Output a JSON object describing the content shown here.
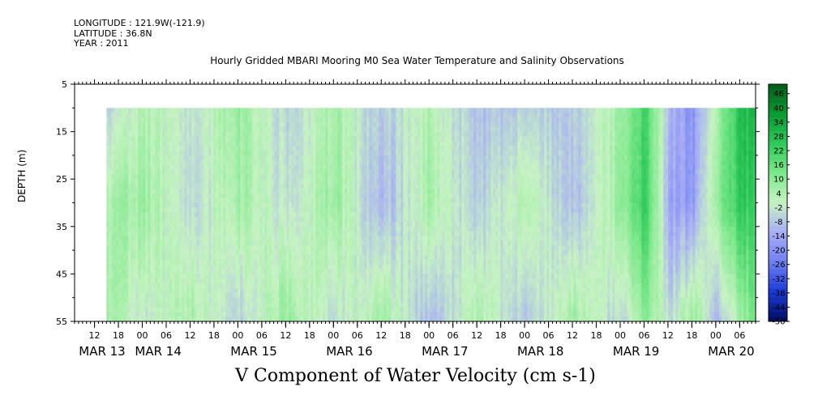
{
  "header": {
    "longitude": "LONGITUDE : 121.9W(-121.9)",
    "latitude": "LATITUDE : 36.8N",
    "year": "YEAR : 2011"
  },
  "chart_data": {
    "type": "heatmap",
    "title": "Hourly Gridded MBARI Mooring M0 Sea Water Temperature and Salinity Observations",
    "variable_title": "V Component of Water Velocity (cm s-1)",
    "ylabel": "DEPTH (m)",
    "y_reversed": true,
    "ylim": [
      5,
      55
    ],
    "y_ticks": [
      5,
      15,
      25,
      35,
      45,
      55
    ],
    "data_depth_range": [
      10,
      55
    ],
    "x_hour_ticks": [
      "12",
      "18",
      "00",
      "06",
      "12",
      "18",
      "00",
      "06",
      "12",
      "18",
      "00",
      "06",
      "12",
      "18",
      "00",
      "06",
      "12",
      "18",
      "00",
      "06",
      "12",
      "18",
      "00",
      "06",
      "12",
      "18",
      "00",
      "06"
    ],
    "x_date_labels": [
      "MAR 13",
      "MAR 14",
      "MAR 15",
      "MAR 16",
      "MAR 17",
      "MAR 18",
      "MAR 19",
      "MAR 20"
    ],
    "x_start": "2011-03-13T07:00",
    "x_end": "2011-03-20T10:00",
    "data_start": "2011-03-13T15:00",
    "colorbar": {
      "min": -50,
      "max": 50,
      "step": 2,
      "labels": [
        "46",
        "40",
        "34",
        "28",
        "22",
        "16",
        "10",
        "4",
        "-2",
        "-8",
        "-14",
        "-20",
        "-26",
        "-32",
        "-38",
        "-44",
        "-50"
      ],
      "stops": [
        "#000a5a",
        "#1a3ad8",
        "#6f80f2",
        "#a8aef5",
        "#c7f3c3",
        "#7be88a",
        "#2ec95a",
        "#0a9a32",
        "#035c1a"
      ]
    },
    "field": {
      "time_anchors": [
        "2011-03-13T15:00",
        "2011-03-14T00:00",
        "2011-03-14T12:00",
        "2011-03-15T00:00",
        "2011-03-15T12:00",
        "2011-03-16T00:00",
        "2011-03-16T12:00",
        "2011-03-17T00:00",
        "2011-03-17T12:00",
        "2011-03-18T00:00",
        "2011-03-18T12:00",
        "2011-03-19T00:00",
        "2011-03-19T06:00",
        "2011-03-19T12:00",
        "2011-03-19T18:00",
        "2011-03-20T00:00",
        "2011-03-20T06:00",
        "2011-03-20T10:00"
      ],
      "depth_anchors": [
        10,
        30,
        55
      ],
      "values": [
        [
          -6,
          4,
          -4,
          8,
          -6,
          6,
          -8,
          4,
          -10,
          -6,
          -8,
          6,
          22,
          -10,
          -20,
          6,
          28,
          30
        ],
        [
          4,
          8,
          -6,
          6,
          -4,
          8,
          -12,
          6,
          -8,
          4,
          -10,
          8,
          24,
          -14,
          -18,
          10,
          26,
          22
        ],
        [
          6,
          -2,
          4,
          -6,
          8,
          -4,
          6,
          -10,
          4,
          -8,
          6,
          -6,
          10,
          -4,
          8,
          -10,
          6,
          14
        ]
      ]
    }
  }
}
